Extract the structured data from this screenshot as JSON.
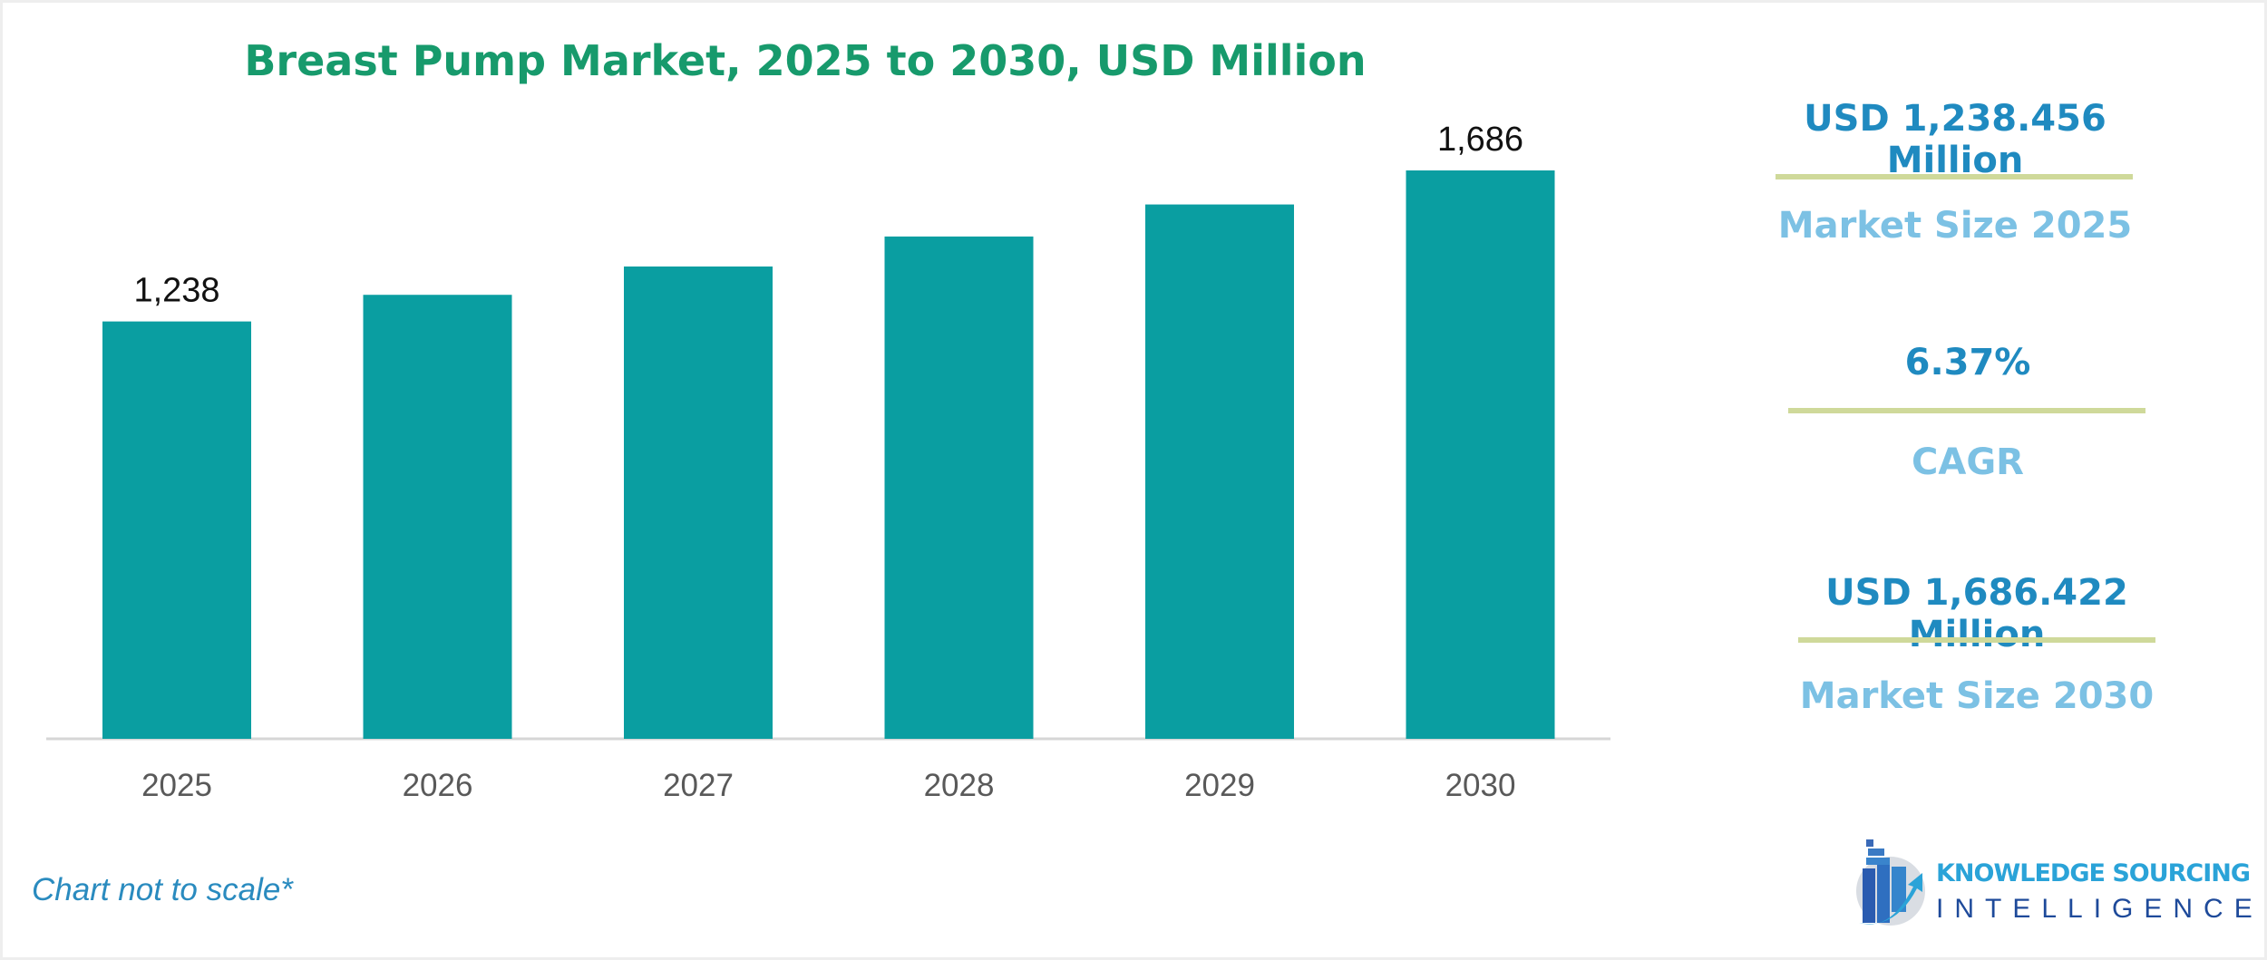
{
  "chart_data": {
    "type": "bar",
    "title": "Breast Pump Market, 2025 to 2030, USD Million",
    "categories": [
      "2025",
      "2026",
      "2027",
      "2028",
      "2029",
      "2030"
    ],
    "values": [
      1238,
      1317,
      1401,
      1490,
      1585,
      1686
    ],
    "data_labels": {
      "0": "1,238",
      "5": "1,686"
    },
    "xlabel": "",
    "ylabel": "",
    "ylim": [
      0,
      1700
    ],
    "grid": false,
    "bar_color": "#0a9ea1"
  },
  "kpis": [
    {
      "value": "USD 1,238.456 Million",
      "label": "Market Size 2025"
    },
    {
      "value": "6.37%",
      "label": "CAGR"
    },
    {
      "value": "USD 1,686.422 Million",
      "label": "Market Size 2030"
    }
  ],
  "footer": {
    "note": "Chart not to scale*"
  },
  "logo": {
    "line1": "KNOWLEDGE SOURCING",
    "line2": "INTELLIGENCE"
  },
  "colors": {
    "title": "#179a6c",
    "kpi_value": "#1f8ac0",
    "kpi_label": "#7cc1e4",
    "divider": "#cfd99a"
  }
}
